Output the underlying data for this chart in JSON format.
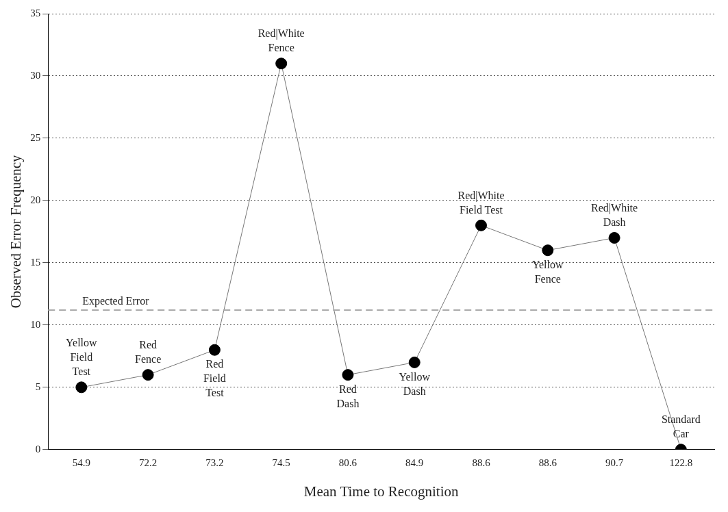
{
  "chart_data": {
    "type": "line",
    "xlabel": "Mean Time to Recognition",
    "ylabel": "Observed Error Frequency",
    "categories": [
      "54.9",
      "72.2",
      "73.2",
      "74.5",
      "80.6",
      "84.9",
      "88.6",
      "88.6",
      "90.7",
      "122.8"
    ],
    "series": [
      {
        "color": "#000000",
        "values": [
          5,
          6,
          8,
          31,
          6,
          7,
          18,
          16,
          17,
          0
        ],
        "value_labels": [
          "Yellow\nField\nTest",
          "Red\nFence",
          "Red\nField\nTest",
          "Red|White\nFence",
          "Red\nDash",
          "Yellow\nDash",
          "Red|White\nField Test",
          "Yellow\nFence",
          "Red|White\nDash",
          "Standard\nCar"
        ]
      }
    ],
    "ylim": [
      0,
      35
    ],
    "yticks": [
      0,
      5,
      10,
      15,
      20,
      25,
      30,
      35
    ],
    "grid": "y",
    "legend": false,
    "marker": "circle",
    "line_style": "solid",
    "ref_lines": [
      {
        "axis": "y",
        "value": 11.2,
        "label": "Expected Error",
        "color": "#aaaaaa",
        "line_style": "dashed"
      }
    ]
  }
}
